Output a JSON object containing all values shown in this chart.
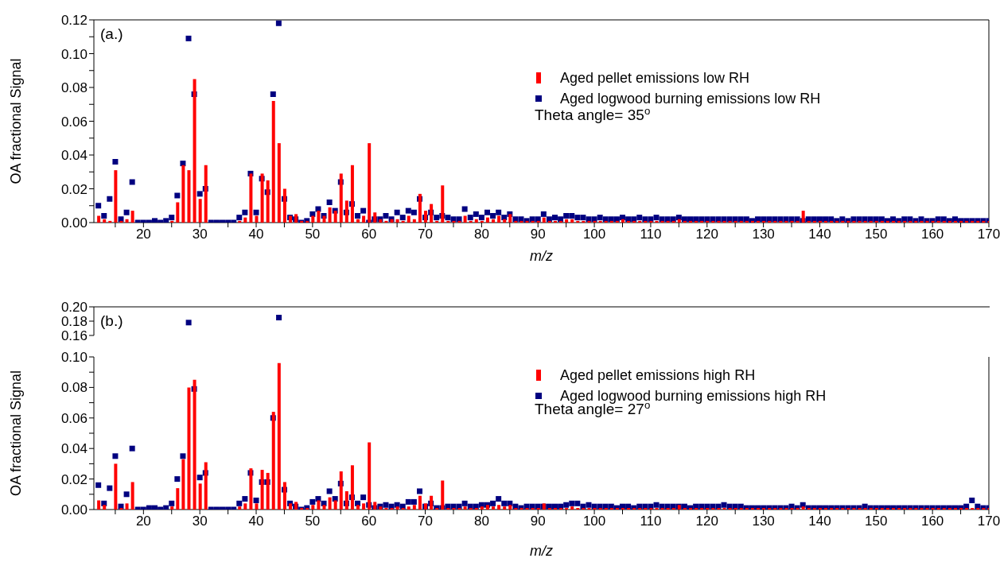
{
  "chart_data": [
    {
      "type": "bar",
      "title": "(a.)",
      "xlabel": "m/z",
      "ylabel": "OA fractional Signal",
      "legend": "top right",
      "marker": "square",
      "annotations": [
        "Theta angle= 35$^{o}$"
      ],
      "xlim": [
        11.2,
        170
      ],
      "xticks": [
        {
          "value": 15,
          "label": null
        },
        20,
        {
          "value": 25,
          "label": null
        },
        30,
        {
          "value": 35,
          "label": null
        },
        40,
        {
          "value": 45,
          "label": null
        },
        50,
        {
          "value": 55,
          "label": null
        },
        60,
        {
          "value": 65,
          "label": null
        },
        70,
        {
          "value": 75,
          "label": null
        },
        80,
        {
          "value": 85,
          "label": null
        },
        90,
        {
          "value": 95,
          "label": null
        },
        100,
        {
          "value": 105,
          "label": null
        },
        110,
        {
          "value": 115,
          "label": null
        },
        120,
        {
          "value": 125,
          "label": null
        },
        130,
        {
          "value": 135,
          "label": null
        },
        140,
        {
          "value": 145,
          "label": null
        },
        150,
        {
          "value": 155,
          "label": null
        },
        160,
        {
          "value": 165,
          "label": null
        },
        170
      ],
      "ylim": [
        0,
        0.12
      ],
      "yticks": [
        {
          "value": 0,
          "label": "0.00"
        },
        {
          "value": 0.01,
          "label": null
        },
        {
          "value": 0.02,
          "label": "0.02"
        },
        {
          "value": 0.03,
          "label": null
        },
        {
          "value": 0.04,
          "label": "0.04"
        },
        {
          "value": 0.05,
          "label": null
        },
        {
          "value": 0.06,
          "label": "0.06"
        },
        {
          "value": 0.07,
          "label": null
        },
        {
          "value": 0.08,
          "label": "0.08"
        },
        {
          "value": 0.09,
          "label": null
        },
        {
          "value": 0.1,
          "label": "0.10"
        },
        {
          "value": 0.11,
          "label": null
        },
        {
          "value": 0.12,
          "label": "0.12"
        }
      ],
      "x": [
        12,
        13,
        14,
        15,
        16,
        17,
        18,
        19,
        20,
        21,
        22,
        23,
        24,
        25,
        26,
        27,
        28,
        29,
        30,
        31,
        32,
        33,
        34,
        35,
        36,
        37,
        38,
        39,
        40,
        41,
        42,
        43,
        44,
        45,
        46,
        47,
        48,
        49,
        50,
        51,
        52,
        53,
        54,
        55,
        56,
        57,
        58,
        59,
        60,
        61,
        62,
        63,
        64,
        65,
        66,
        67,
        68,
        69,
        70,
        71,
        72,
        73,
        74,
        75,
        76,
        77,
        78,
        79,
        80,
        81,
        82,
        83,
        84,
        85,
        86,
        87,
        88,
        89,
        90,
        91,
        92,
        93,
        94,
        95,
        96,
        97,
        98,
        99,
        100,
        101,
        102,
        103,
        104,
        105,
        106,
        107,
        108,
        109,
        110,
        111,
        112,
        113,
        114,
        115,
        116,
        117,
        118,
        119,
        120,
        121,
        122,
        123,
        124,
        125,
        126,
        127,
        128,
        129,
        130,
        131,
        132,
        133,
        134,
        135,
        136,
        137,
        138,
        139,
        140,
        141,
        142,
        143,
        144,
        145,
        146,
        147,
        148,
        149,
        150,
        151,
        152,
        153,
        154,
        155,
        156,
        157,
        158,
        159,
        160,
        161,
        162,
        163,
        164,
        165,
        166,
        167,
        168,
        169,
        170
      ],
      "series": [
        {
          "name": "Aged pellet emissions low RH",
          "color": "#ff0000",
          "values": [
            0.004,
            0.002,
            0.001,
            0.031,
            0.001,
            0.002,
            0.007,
            0,
            0,
            0,
            0,
            0,
            0,
            0.001,
            0.012,
            0.034,
            0.031,
            0.085,
            0.014,
            0.034,
            0,
            0,
            0,
            0,
            0,
            0.001,
            0.003,
            0.029,
            0.004,
            0.029,
            0.025,
            0.072,
            0.047,
            0.02,
            0.004,
            0.005,
            0.001,
            0.001,
            0.004,
            0.007,
            0.004,
            0.009,
            0.007,
            0.029,
            0.013,
            0.034,
            0.002,
            0.004,
            0.047,
            0.006,
            0.002,
            0.001,
            0.002,
            0.002,
            0.001,
            0.004,
            0.002,
            0.017,
            0.007,
            0.011,
            0.001,
            0.022,
            0.001,
            0.001,
            0.001,
            0.004,
            0.001,
            0.002,
            0.001,
            0.003,
            0.002,
            0.004,
            0.002,
            0.005,
            0.001,
            0.001,
            0.001,
            0.001,
            0.001,
            0.003,
            0.001,
            0.001,
            0.001,
            0.002,
            0.002,
            0.001,
            0.001,
            0.001,
            0.001,
            0.001,
            0.001,
            0.001,
            0.001,
            0.002,
            0.001,
            0.001,
            0.001,
            0.001,
            0.001,
            0.001,
            0.001,
            0.001,
            0.001,
            0.002,
            0.001,
            0.001,
            0.001,
            0.001,
            0.001,
            0.001,
            0.001,
            0.001,
            0.001,
            0.001,
            0.001,
            0.001,
            0.001,
            0.001,
            0.001,
            0.001,
            0.001,
            0.001,
            0.001,
            0.001,
            0.001,
            0.007,
            0.001,
            0.001,
            0.001,
            0.001,
            0.001,
            0.001,
            0.001,
            0.001,
            0.001,
            0.001,
            0.001,
            0.001,
            0.001,
            0.001,
            0.001,
            0.001,
            0.001,
            0.001,
            0.001,
            0.001,
            0.001,
            0.001,
            0.001,
            0.001,
            0.001,
            0.001,
            0.001,
            0.001,
            0.001,
            0.001,
            0.001,
            0.001,
            0.001
          ]
        },
        {
          "name": "Aged logwood burning emissions low RH",
          "type": "scatter",
          "color": "#000080",
          "values": [
            0.01,
            0.004,
            0.014,
            0.036,
            0.002,
            0.006,
            0.024,
            0,
            0,
            0,
            0.001,
            0,
            0.001,
            0.003,
            0.016,
            0.035,
            0.109,
            0.076,
            0.017,
            0.02,
            0,
            0,
            0,
            0,
            0,
            0.003,
            0.006,
            0.029,
            0.006,
            0.026,
            0.018,
            0.076,
            0.118,
            0.014,
            0.003,
            0.002,
            0,
            0.001,
            0.005,
            0.008,
            0.004,
            0.012,
            0.007,
            0.024,
            0.006,
            0.011,
            0.004,
            0.007,
            0,
            0.002,
            0.002,
            0.004,
            0.002,
            0.006,
            0.003,
            0.007,
            0.006,
            0.014,
            0.003,
            0.006,
            0.003,
            0.004,
            0.003,
            0.002,
            0.002,
            0.008,
            0.003,
            0.005,
            0.003,
            0.006,
            0.004,
            0.006,
            0.003,
            0.005,
            0.002,
            0.002,
            0.001,
            0.002,
            0.002,
            0.005,
            0.002,
            0.003,
            0.002,
            0.004,
            0.004,
            0.003,
            0.003,
            0.002,
            0.002,
            0.003,
            0.002,
            0.002,
            0.002,
            0.003,
            0.002,
            0.002,
            0.003,
            0.002,
            0.002,
            0.003,
            0.002,
            0.002,
            0.002,
            0.003,
            0.002,
            0.002,
            0.002,
            0.002,
            0.002,
            0.002,
            0.002,
            0.002,
            0.002,
            0.002,
            0.002,
            0.002,
            0.001,
            0.002,
            0.002,
            0.002,
            0.002,
            0.002,
            0.002,
            0.002,
            0.002,
            0.001,
            0.002,
            0.002,
            0.002,
            0.002,
            0.002,
            0.001,
            0.002,
            0.001,
            0.002,
            0.002,
            0.002,
            0.002,
            0.002,
            0.002,
            0.001,
            0.002,
            0.001,
            0.002,
            0.002,
            0.001,
            0.002,
            0.001,
            0.001,
            0.002,
            0.002,
            0.001,
            0.002,
            0.001,
            0.001,
            0.001,
            0.001,
            0.001,
            0.001
          ]
        }
      ]
    },
    {
      "type": "scatter",
      "title": "(b.)",
      "marker": "square",
      "tick_labels": "y",
      "xlim": [
        11.2,
        170
      ],
      "ylim": [
        0.16,
        0.2
      ],
      "yticks": [
        {
          "value": 0.16,
          "label": "0.16"
        },
        {
          "value": 0.18,
          "label": "0.18"
        },
        {
          "value": 0.2,
          "label": "0.20"
        }
      ],
      "series": [
        {
          "color": "#000080",
          "x": [
            28,
            44
          ],
          "values": [
            0.178,
            0.185
          ]
        }
      ]
    },
    {
      "type": "bar",
      "xlabel": "m/z",
      "ylabel": "OA fractional Signal",
      "legend": "top right",
      "marker": "square",
      "annotations": [
        "Theta angle= 27$^{o}$"
      ],
      "xlim": [
        11.2,
        170
      ],
      "xticks": [
        {
          "value": 15,
          "label": null
        },
        20,
        {
          "value": 25,
          "label": null
        },
        30,
        {
          "value": 35,
          "label": null
        },
        40,
        {
          "value": 45,
          "label": null
        },
        50,
        {
          "value": 55,
          "label": null
        },
        60,
        {
          "value": 65,
          "label": null
        },
        70,
        {
          "value": 75,
          "label": null
        },
        80,
        {
          "value": 85,
          "label": null
        },
        90,
        {
          "value": 95,
          "label": null
        },
        100,
        {
          "value": 105,
          "label": null
        },
        110,
        {
          "value": 115,
          "label": null
        },
        120,
        {
          "value": 125,
          "label": null
        },
        130,
        {
          "value": 135,
          "label": null
        },
        140,
        {
          "value": 145,
          "label": null
        },
        150,
        {
          "value": 155,
          "label": null
        },
        160,
        {
          "value": 165,
          "label": null
        },
        170
      ],
      "ylim": [
        0,
        0.1
      ],
      "yticks": [
        {
          "value": 0,
          "label": "0.00"
        },
        {
          "value": 0.01,
          "label": null
        },
        {
          "value": 0.02,
          "label": "0.02"
        },
        {
          "value": 0.03,
          "label": null
        },
        {
          "value": 0.04,
          "label": "0.04"
        },
        {
          "value": 0.05,
          "label": null
        },
        {
          "value": 0.06,
          "label": "0.06"
        },
        {
          "value": 0.07,
          "label": null
        },
        {
          "value": 0.08,
          "label": "0.08"
        },
        {
          "value": 0.09,
          "label": null
        },
        {
          "value": 0.1,
          "label": "0.10"
        }
      ],
      "x": [
        12,
        13,
        14,
        15,
        16,
        17,
        18,
        19,
        20,
        21,
        22,
        23,
        24,
        25,
        26,
        27,
        28,
        29,
        30,
        31,
        32,
        33,
        34,
        35,
        36,
        37,
        38,
        39,
        40,
        41,
        42,
        43,
        44,
        45,
        46,
        47,
        48,
        49,
        50,
        51,
        52,
        53,
        54,
        55,
        56,
        57,
        58,
        59,
        60,
        61,
        62,
        63,
        64,
        65,
        66,
        67,
        68,
        69,
        70,
        71,
        72,
        73,
        74,
        75,
        76,
        77,
        78,
        79,
        80,
        81,
        82,
        83,
        84,
        85,
        86,
        87,
        88,
        89,
        90,
        91,
        92,
        93,
        94,
        95,
        96,
        97,
        98,
        99,
        100,
        101,
        102,
        103,
        104,
        105,
        106,
        107,
        108,
        109,
        110,
        111,
        112,
        113,
        114,
        115,
        116,
        117,
        118,
        119,
        120,
        121,
        122,
        123,
        124,
        125,
        126,
        127,
        128,
        129,
        130,
        131,
        132,
        133,
        134,
        135,
        136,
        137,
        138,
        139,
        140,
        141,
        142,
        143,
        144,
        145,
        146,
        147,
        148,
        149,
        150,
        151,
        152,
        153,
        154,
        155,
        156,
        157,
        158,
        159,
        160,
        161,
        162,
        163,
        164,
        165,
        166,
        167,
        168,
        169,
        170
      ],
      "series": [
        {
          "name": "Aged pellet emissions high RH",
          "color": "#ff0000",
          "values": [
            0.006,
            0.003,
            0,
            0.03,
            0.001,
            0.004,
            0.018,
            0,
            0,
            0,
            0,
            0,
            0,
            0.002,
            0.014,
            0.033,
            0.08,
            0.085,
            0.017,
            0.031,
            0,
            0,
            0,
            0,
            0,
            0.002,
            0.004,
            0.027,
            0.004,
            0.026,
            0.024,
            0.064,
            0.096,
            0.018,
            0.004,
            0.005,
            0.001,
            0.001,
            0.003,
            0.006,
            0.003,
            0.008,
            0.006,
            0.025,
            0.012,
            0.029,
            0.003,
            0.004,
            0.044,
            0.005,
            0.002,
            0.001,
            0.001,
            0.002,
            0.001,
            0.002,
            0.003,
            0.009,
            0.004,
            0.009,
            0.001,
            0.019,
            0.001,
            0.001,
            0.001,
            0.002,
            0.001,
            0.001,
            0.002,
            0.003,
            0.002,
            0.003,
            0.002,
            0.003,
            0.001,
            0.001,
            0.001,
            0.001,
            0.001,
            0.004,
            0.001,
            0.001,
            0.001,
            0.001,
            0.002,
            0.001,
            0.001,
            0.001,
            0.001,
            0.001,
            0.001,
            0.001,
            0.001,
            0.001,
            0.001,
            0.001,
            0.001,
            0.001,
            0.001,
            0.001,
            0.001,
            0.001,
            0.001,
            0.003,
            0.001,
            0.001,
            0.001,
            0.001,
            0.001,
            0.001,
            0.001,
            0.001,
            0.001,
            0.001,
            0.001,
            0.001,
            0.001,
            0.001,
            0.001,
            0.001,
            0.001,
            0.001,
            0.001,
            0.001,
            0.001,
            0.002,
            0.001,
            0.001,
            0.001,
            0.001,
            0.001,
            0.001,
            0.001,
            0.001,
            0.001,
            0.001,
            0.001,
            0.001,
            0.001,
            0.001,
            0.001,
            0.001,
            0.001,
            0.001,
            0.001,
            0.001,
            0.001,
            0.001,
            0.001,
            0.001,
            0.001,
            0.001,
            0.001,
            0.001,
            0.001,
            0.001,
            0.001,
            0.001,
            0.001
          ]
        },
        {
          "name": "Aged logwood burning emissions high RH",
          "type": "scatter",
          "color": "#000080",
          "values": [
            0.016,
            0.004,
            0.014,
            0.035,
            0.002,
            0.01,
            0.04,
            0,
            0,
            0.001,
            0.001,
            0,
            0.001,
            0.004,
            0.02,
            0.035,
            null,
            0.079,
            0.021,
            0.024,
            0,
            0,
            0,
            0,
            0,
            0.004,
            0.007,
            0.024,
            0.006,
            0.018,
            0.018,
            0.06,
            null,
            0.013,
            0.004,
            0.002,
            0,
            0.001,
            0.005,
            0.007,
            0.004,
            0.012,
            0.007,
            0.017,
            0.004,
            0.008,
            0.004,
            0.008,
            0.003,
            0.001,
            0.002,
            0.003,
            0.002,
            0.003,
            0.002,
            0.005,
            0.005,
            0.012,
            0.002,
            0.004,
            0.001,
            0.001,
            0.002,
            0.002,
            0.002,
            0.004,
            0.002,
            0.002,
            0.003,
            0.003,
            0.004,
            0.007,
            0.004,
            0.004,
            0.002,
            0.001,
            0.002,
            0.002,
            0.002,
            0.002,
            0.002,
            0.002,
            0.002,
            0.003,
            0.004,
            0.004,
            0.002,
            0.003,
            0.002,
            0.002,
            0.002,
            0.002,
            0.001,
            0.002,
            0.002,
            0.001,
            0.002,
            0.002,
            0.002,
            0.003,
            0.002,
            0.002,
            0.002,
            0.002,
            0.002,
            0.001,
            0.002,
            0.002,
            0.002,
            0.002,
            0.002,
            0.003,
            0.002,
            0.002,
            0.002,
            0.001,
            0.001,
            0.001,
            0.001,
            0.001,
            0.001,
            0.001,
            0.001,
            0.002,
            0.001,
            0.003,
            0.001,
            0.001,
            0.001,
            0.001,
            0.001,
            0.001,
            0.001,
            0.001,
            0.001,
            0.001,
            0.002,
            0.001,
            0.001,
            0.001,
            0.001,
            0.001,
            0.001,
            0.001,
            0.001,
            0.001,
            0.001,
            0.001,
            0.001,
            0.001,
            0.001,
            0.001,
            0.001,
            0.001,
            0.002,
            0.006,
            0.002,
            0.001,
            0.001
          ]
        }
      ]
    }
  ]
}
